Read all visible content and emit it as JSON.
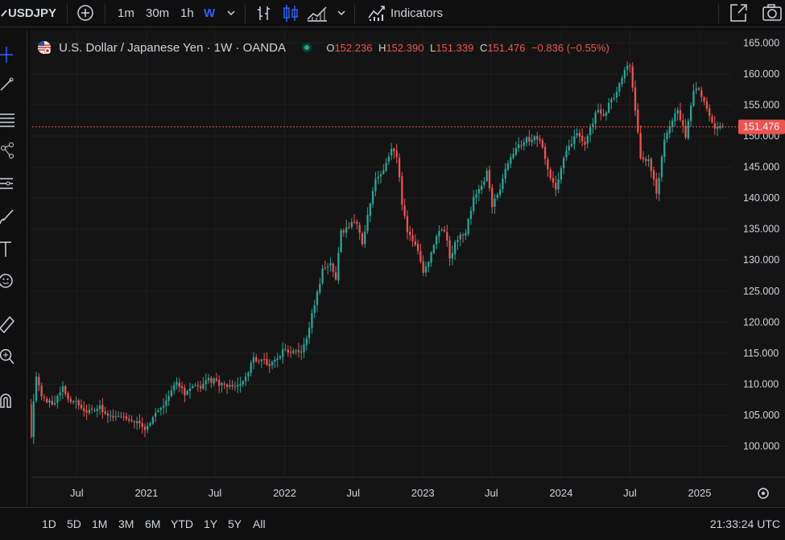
{
  "toolbar": {
    "symbol": "USDJPY",
    "intervals": [
      "1m",
      "30m",
      "1h",
      "W"
    ],
    "active_interval": "W",
    "indicators_label": "Indicators"
  },
  "legend": {
    "title": "U.S. Dollar / Japanese Yen · 1W · OANDA",
    "o_label": "O",
    "o_value": "152.236",
    "h_label": "H",
    "h_value": "152.390",
    "l_label": "L",
    "l_value": "151.339",
    "c_label": "C",
    "c_value": "151.476",
    "change": "−0.836 (−0.55%)"
  },
  "price_tag": "151.476",
  "ranges": [
    "1D",
    "5D",
    "1M",
    "3M",
    "6M",
    "YTD",
    "1Y",
    "5Y",
    "All"
  ],
  "clock": "21:33:24 UTC",
  "colors": {
    "up": "#26a69a",
    "down": "#ef5350",
    "background": "#0f0f0f",
    "grid": "#1f1f1f",
    "accent": "#2962ff"
  },
  "chart_data": {
    "type": "candlestick",
    "interval": "1W",
    "ylim": [
      95,
      167
    ],
    "y_ticks": [
      100,
      105,
      110,
      115,
      120,
      125,
      130,
      135,
      140,
      145,
      150,
      155,
      160,
      165
    ],
    "y_tick_labels": [
      "100.000",
      "105.000",
      "110.000",
      "115.000",
      "120.000",
      "125.000",
      "130.000",
      "135.000",
      "140.000",
      "145.000",
      "150.000",
      "155.000",
      "160.000",
      "165.000"
    ],
    "x_range": [
      "2020-03-01",
      "2025-03-25"
    ],
    "x_ticks": [
      {
        "date": "2020-07-01",
        "label": "Jul"
      },
      {
        "date": "2021-01-01",
        "label": "2021"
      },
      {
        "date": "2021-07-01",
        "label": "Jul"
      },
      {
        "date": "2022-01-01",
        "label": "2022"
      },
      {
        "date": "2022-07-01",
        "label": "Jul"
      },
      {
        "date": "2023-01-01",
        "label": "2023"
      },
      {
        "date": "2023-07-01",
        "label": "Jul"
      },
      {
        "date": "2024-01-01",
        "label": "2024"
      },
      {
        "date": "2024-07-01",
        "label": "Jul"
      },
      {
        "date": "2025-01-01",
        "label": "2025"
      }
    ],
    "last_close": 151.476,
    "path": [
      [
        "2020-03-02",
        107.0
      ],
      [
        "2020-03-09",
        101.2
      ],
      [
        "2020-03-16",
        107.5
      ],
      [
        "2020-03-23",
        111.2
      ],
      [
        "2020-04-06",
        108.0
      ],
      [
        "2020-04-20",
        107.3
      ],
      [
        "2020-05-11",
        107.0
      ],
      [
        "2020-06-01",
        109.5
      ],
      [
        "2020-06-15",
        107.2
      ],
      [
        "2020-07-06",
        107.5
      ],
      [
        "2020-07-27",
        105.3
      ],
      [
        "2020-08-17",
        106.2
      ],
      [
        "2020-09-07",
        106.2
      ],
      [
        "2020-09-28",
        105.0
      ],
      [
        "2020-10-19",
        104.8
      ],
      [
        "2020-11-09",
        104.6
      ],
      [
        "2020-11-30",
        104.2
      ],
      [
        "2020-12-21",
        103.4
      ],
      [
        "2021-01-04",
        103.0
      ],
      [
        "2021-01-25",
        104.6
      ],
      [
        "2021-02-15",
        105.8
      ],
      [
        "2021-03-08",
        108.5
      ],
      [
        "2021-03-29",
        110.6
      ],
      [
        "2021-04-19",
        108.2
      ],
      [
        "2021-05-10",
        109.3
      ],
      [
        "2021-05-31",
        109.6
      ],
      [
        "2021-06-21",
        110.8
      ],
      [
        "2021-07-12",
        110.4
      ],
      [
        "2021-08-02",
        109.6
      ],
      [
        "2021-08-23",
        109.7
      ],
      [
        "2021-09-13",
        109.9
      ],
      [
        "2021-10-04",
        112.0
      ],
      [
        "2021-10-18",
        114.0
      ],
      [
        "2021-11-08",
        113.9
      ],
      [
        "2021-11-29",
        113.2
      ],
      [
        "2021-12-20",
        114.3
      ],
      [
        "2022-01-03",
        115.6
      ],
      [
        "2022-01-24",
        115.2
      ],
      [
        "2022-02-14",
        115.0
      ],
      [
        "2022-03-07",
        117.0
      ],
      [
        "2022-03-21",
        121.8
      ],
      [
        "2022-04-04",
        124.5
      ],
      [
        "2022-04-18",
        128.5
      ],
      [
        "2022-05-09",
        129.3
      ],
      [
        "2022-05-23",
        127.1
      ],
      [
        "2022-06-06",
        134.4
      ],
      [
        "2022-06-20",
        135.2
      ],
      [
        "2022-07-04",
        136.0
      ],
      [
        "2022-07-18",
        136.2
      ],
      [
        "2022-08-01",
        133.0
      ],
      [
        "2022-08-15",
        136.9
      ],
      [
        "2022-09-05",
        142.8
      ],
      [
        "2022-09-26",
        144.5
      ],
      [
        "2022-10-17",
        147.6
      ],
      [
        "2022-10-31",
        146.6
      ],
      [
        "2022-11-14",
        139.3
      ],
      [
        "2022-11-28",
        134.3
      ],
      [
        "2022-12-19",
        132.8
      ],
      [
        "2023-01-09",
        128.0
      ],
      [
        "2023-01-23",
        129.9
      ],
      [
        "2023-02-13",
        134.1
      ],
      [
        "2023-03-06",
        135.0
      ],
      [
        "2023-03-20",
        130.6
      ],
      [
        "2023-04-10",
        133.5
      ],
      [
        "2023-05-01",
        134.8
      ],
      [
        "2023-05-22",
        140.0
      ],
      [
        "2023-06-12",
        141.8
      ],
      [
        "2023-06-26",
        144.3
      ],
      [
        "2023-07-10",
        138.8
      ],
      [
        "2023-07-31",
        141.8
      ],
      [
        "2023-08-21",
        146.0
      ],
      [
        "2023-09-11",
        147.8
      ],
      [
        "2023-10-02",
        149.3
      ],
      [
        "2023-10-23",
        149.6
      ],
      [
        "2023-11-13",
        149.7
      ],
      [
        "2023-12-04",
        144.9
      ],
      [
        "2023-12-25",
        141.1
      ],
      [
        "2024-01-08",
        144.9
      ],
      [
        "2024-01-29",
        148.3
      ],
      [
        "2024-02-19",
        150.5
      ],
      [
        "2024-03-11",
        149.0
      ],
      [
        "2024-03-25",
        151.3
      ],
      [
        "2024-04-15",
        154.6
      ],
      [
        "2024-04-29",
        152.9
      ],
      [
        "2024-05-13",
        155.6
      ],
      [
        "2024-06-03",
        156.9
      ],
      [
        "2024-06-24",
        160.8
      ],
      [
        "2024-07-08",
        161.2
      ],
      [
        "2024-07-22",
        153.8
      ],
      [
        "2024-08-05",
        146.6
      ],
      [
        "2024-08-26",
        146.1
      ],
      [
        "2024-09-16",
        141.0
      ],
      [
        "2024-10-07",
        149.1
      ],
      [
        "2024-10-28",
        152.6
      ],
      [
        "2024-11-11",
        154.3
      ],
      [
        "2024-12-02",
        150.0
      ],
      [
        "2024-12-23",
        157.2
      ],
      [
        "2025-01-06",
        157.8
      ],
      [
        "2025-01-27",
        154.3
      ],
      [
        "2025-02-17",
        151.6
      ],
      [
        "2025-03-10",
        151.476
      ]
    ]
  }
}
